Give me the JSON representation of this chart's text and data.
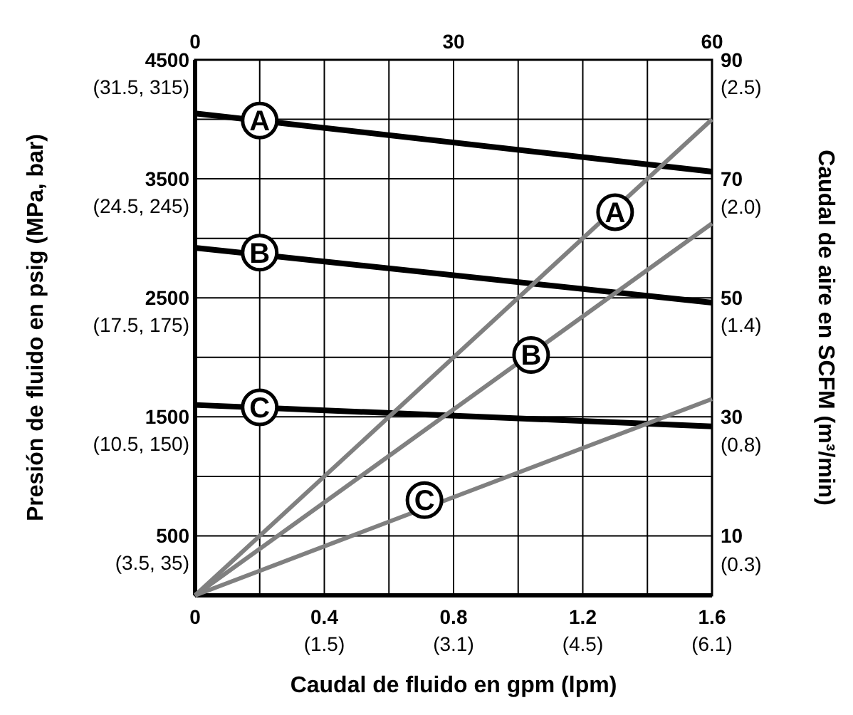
{
  "chart_data": {
    "type": "line",
    "xlabel": "Caudal de fluido en gpm (lpm)",
    "ylabel": "Presión de fluido en psig (MPa, bar)",
    "y2label": "Caudal de aire en SCFM (m³/min)",
    "x": [
      0,
      1.6
    ],
    "xlim": [
      0,
      1.6
    ],
    "xticks": [
      0,
      {
        "value": 0.2,
        "label": null
      },
      0.4,
      {
        "value": 0.6,
        "label": null
      },
      0.8,
      {
        "value": 1.0,
        "label": null
      },
      1.2,
      {
        "value": 1.4,
        "label": null
      },
      1.6
    ],
    "x2lim": [
      0,
      60
    ],
    "x2ticks": [
      0,
      30,
      60
    ],
    "ylim": [
      0,
      4500
    ],
    "yticks": [
      500,
      {
        "value": 1000,
        "label": null
      },
      1500,
      {
        "value": 2000,
        "label": null
      },
      2500,
      {
        "value": 3000,
        "label": null
      },
      3500,
      {
        "value": 4000,
        "label": null
      },
      4500
    ],
    "y2lim": [
      0,
      90
    ],
    "y2ticks": [
      10,
      30,
      50,
      70,
      90
    ],
    "y3lim": [
      0.13,
      2.68
    ],
    "y3ticks": [
      {
        "value": 0.28,
        "label": "(0.3)"
      },
      {
        "value": 0.85,
        "label": "(0.8)"
      },
      {
        "value": 1.42,
        "label": "(1.4)"
      },
      {
        "value": 1.98,
        "label": "(2.0)"
      },
      {
        "value": 2.55,
        "label": "(2.5)"
      }
    ],
    "grid": true,
    "series": [
      {
        "color": "#000000",
        "values": [
          4050,
          3560
        ]
      },
      {
        "color": "#000000",
        "values": [
          2920,
          2460
        ]
      },
      {
        "color": "#000000",
        "values": [
          1600,
          1420
        ]
      },
      {
        "color": "#808080",
        "axis": "y2",
        "values": [
          0,
          80
        ]
      },
      {
        "color": "#808080",
        "axis": "y2",
        "values": [
          0,
          62.5
        ]
      },
      {
        "color": "#808080",
        "axis": "y2",
        "values": [
          0,
          33
        ]
      }
    ],
    "annotations": [
      {
        "text": "A",
        "x": 0.2,
        "y": 3990
      },
      {
        "text": "A",
        "x": 1.3,
        "y": 3220
      },
      {
        "text": "B",
        "x": 0.2,
        "y": 2880
      },
      {
        "text": "B",
        "x": 1.04,
        "y": 2020
      },
      {
        "text": "C",
        "x": 0.2,
        "y": 1580
      },
      {
        "text": "C",
        "x": 0.71,
        "y": 800
      },
      "(3.5, 35)",
      "(10.5, 150)",
      "(17.5, 175)",
      "(24.5, 245)",
      "(31.5, 315)",
      "(1.5)",
      "(3.1)",
      "(4.5)",
      "(6.1)"
    ]
  }
}
